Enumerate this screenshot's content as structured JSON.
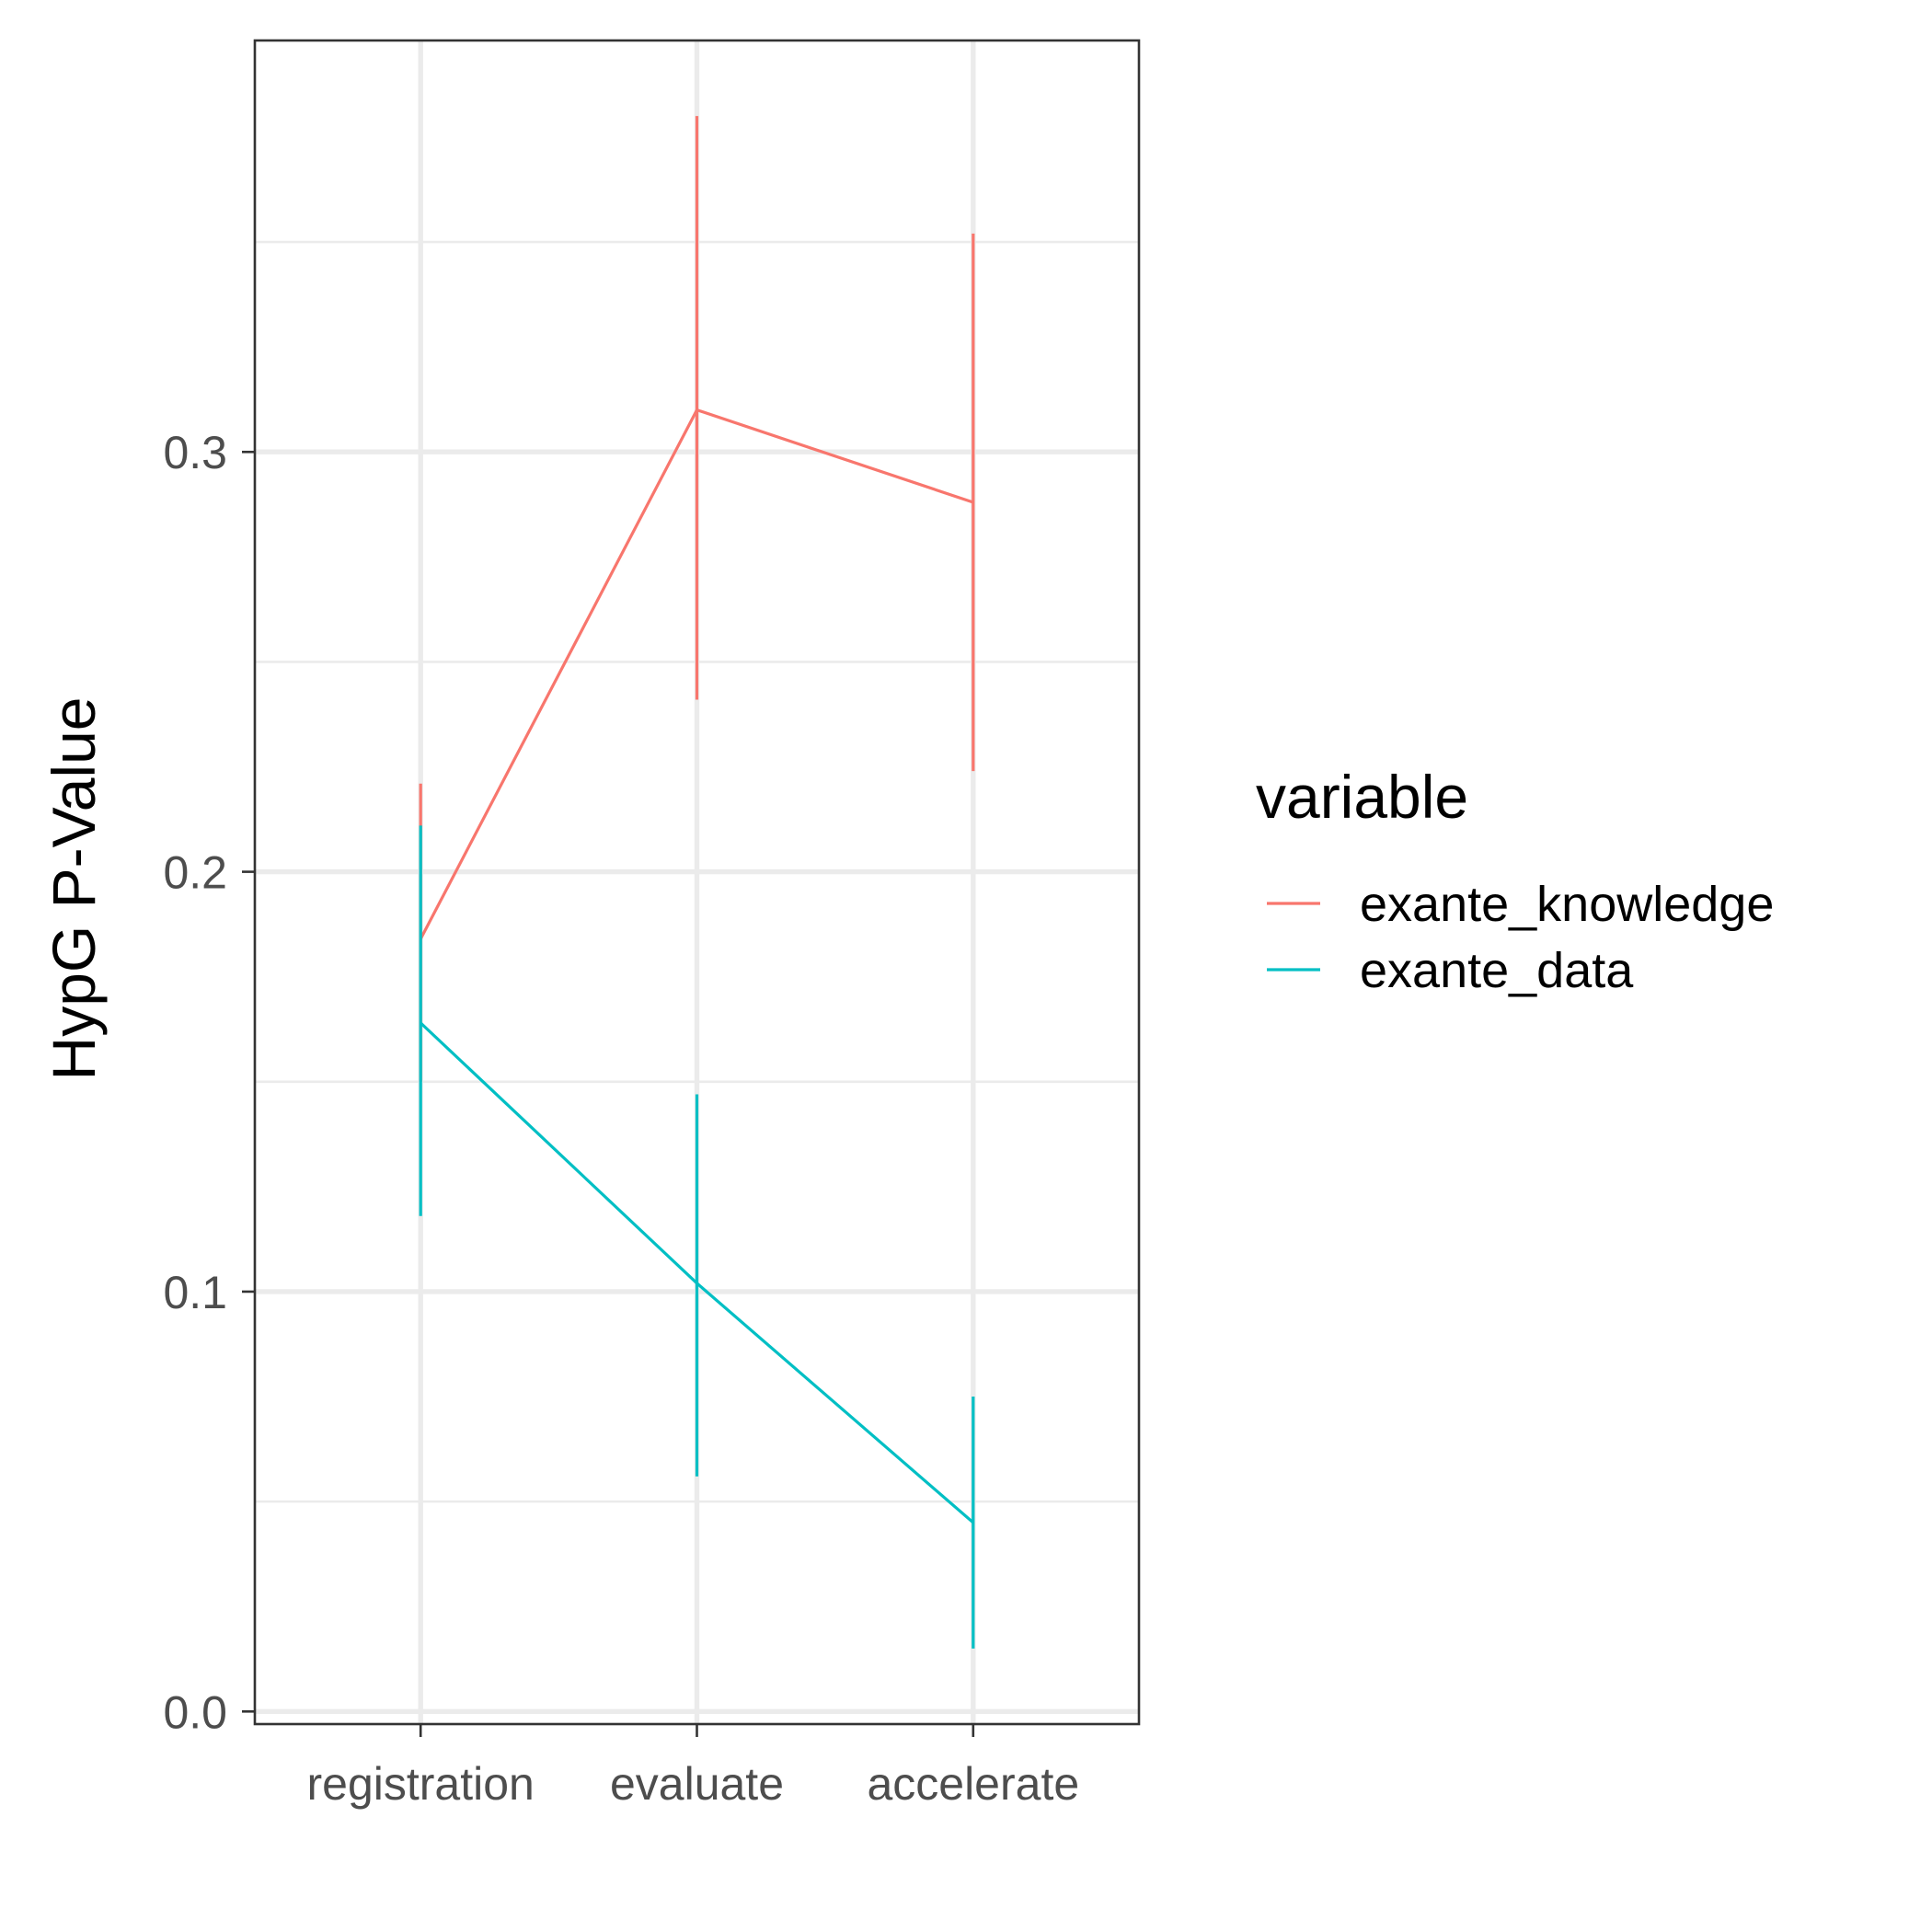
{
  "chart_data": {
    "type": "line",
    "title": "",
    "xlabel": "",
    "ylabel": "HypG P-Value",
    "categories": [
      "registration",
      "evaluate",
      "accelerate"
    ],
    "ylim": [
      -0.003,
      0.398
    ],
    "y_ticks": [
      0.0,
      0.1,
      0.2,
      0.3
    ],
    "y_tick_labels": [
      "0.0",
      "0.1",
      "0.2",
      "0.3"
    ],
    "grid": true,
    "legend": {
      "title": "variable",
      "placement": "right"
    },
    "series": [
      {
        "name": "exante_knowledge",
        "color": "#F8766D",
        "values": [
          0.184,
          0.31,
          0.288
        ],
        "lower": [
          0.15,
          0.241,
          0.224
        ],
        "upper": [
          0.221,
          0.38,
          0.352
        ]
      },
      {
        "name": "exante_data",
        "color": "#00BFC4",
        "values": [
          0.164,
          0.102,
          0.045
        ],
        "lower": [
          0.118,
          0.056,
          0.015
        ],
        "upper": [
          0.211,
          0.147,
          0.075
        ]
      }
    ]
  }
}
